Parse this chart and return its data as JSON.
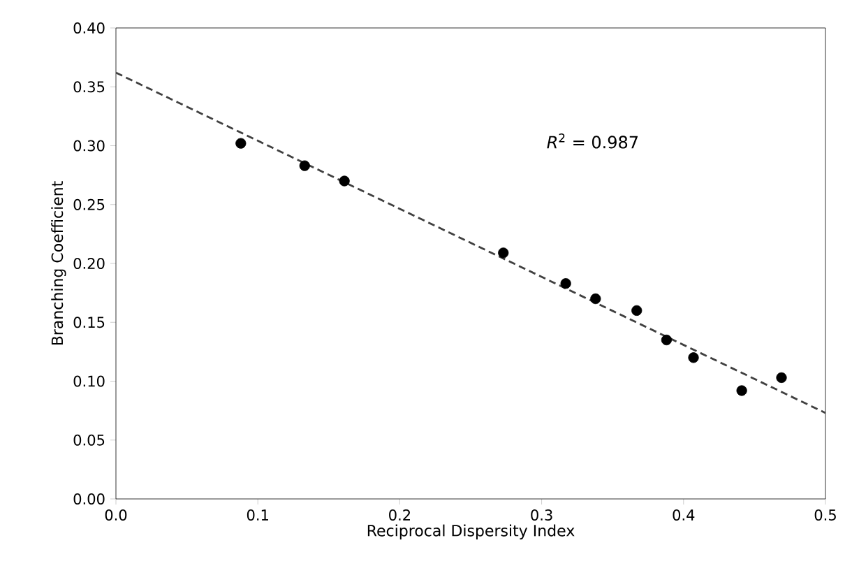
{
  "chart_data": {
    "type": "scatter",
    "xlabel": "Reciprocal Dispersity Index",
    "ylabel": "Branching Coefficient",
    "annotations": [
      "*R*$^{2}$ = 0.987"
    ],
    "series": [
      {
        "color": "#000000",
        "marker": "circle",
        "x": [
          0.088,
          0.133,
          0.161,
          0.273,
          0.317,
          0.338,
          0.367,
          0.388,
          0.407,
          0.441,
          0.469
        ],
        "values": [
          0.302,
          0.283,
          0.27,
          0.209,
          0.183,
          0.17,
          0.16,
          0.135,
          0.12,
          0.092,
          0.103
        ]
      },
      {
        "type": "line",
        "color": "#404040",
        "line_style": "dashed",
        "marker": "none",
        "x": [
          0.0,
          0.5
        ],
        "values": [
          0.362,
          0.073
        ]
      }
    ],
    "xlim": [
      0,
      0.5
    ],
    "ylim": [
      0,
      0.4
    ],
    "xticks": [
      {
        "value": 0,
        "label": "0.0"
      },
      0.1,
      0.2,
      0.3,
      0.4,
      0.5
    ],
    "yticks": [
      {
        "value": 0,
        "label": "0.00"
      },
      0.05,
      {
        "value": 0.1,
        "label": "0.10"
      },
      0.15,
      {
        "value": 0.2,
        "label": "0.20"
      },
      0.25,
      {
        "value": 0.3,
        "label": "0.30"
      },
      0.35,
      {
        "value": 0.4,
        "label": "0.40"
      }
    ],
    "grid": false
  }
}
